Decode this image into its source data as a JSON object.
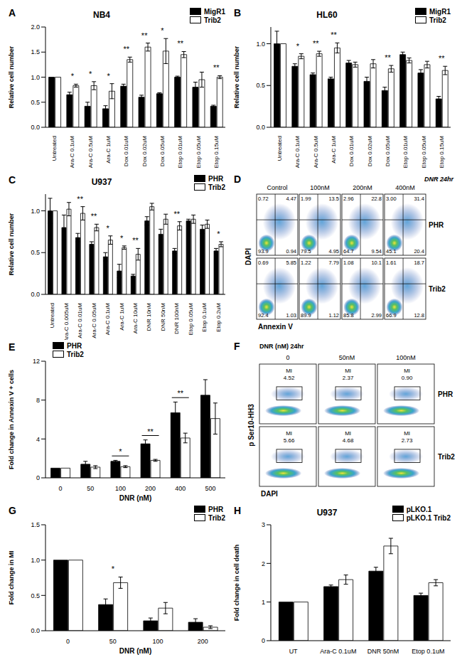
{
  "chart_data": [
    {
      "panel": "A",
      "type": "bar",
      "title": "NB4",
      "y_label": "Relative cell number",
      "legend": "upper right",
      "categories": [
        "Untreated",
        "Ara-C 0.1uM",
        "Ara-C 0.5uM",
        "Ara-C 1uM",
        "Dox 0.01uM",
        "Dox 0.02uM",
        "Dox 0.05uM",
        "Etop 0.01uM",
        "Etop 0.05uM",
        "Etop 0.15uM"
      ],
      "series": [
        {
          "name": "MigR1",
          "color": "#000000",
          "values": [
            1,
            0.65,
            0.42,
            0.37,
            0.82,
            0.6,
            0.67,
            1.0,
            0.8,
            0.42
          ],
          "errors": [
            0,
            0.05,
            0.08,
            0.06,
            0.04,
            0.04,
            0.02,
            0.02,
            0.1,
            0.02
          ]
        },
        {
          "name": "Trib2",
          "color": "#ffffff",
          "values": [
            1,
            0.83,
            0.83,
            0.72,
            1.35,
            1.6,
            1.52,
            1.45,
            0.95,
            1.0
          ],
          "errors": [
            0,
            0.03,
            0.08,
            0.15,
            0.05,
            0.08,
            0.25,
            0.06,
            0.15,
            0.03
          ]
        }
      ],
      "significance": [
        null,
        "*",
        "*",
        "*",
        "**",
        "**",
        "*",
        "**",
        null,
        "**"
      ],
      "ylim": [
        0,
        2
      ],
      "yticks": [
        {
          "value": 0,
          "label": "0.0"
        },
        {
          "value": 0.5,
          "label": "0.5"
        },
        {
          "value": 1,
          "label": "1.0"
        },
        {
          "value": 1.5,
          "label": "1.5"
        },
        {
          "value": 2,
          "label": "2.0"
        }
      ]
    },
    {
      "panel": "B",
      "type": "bar",
      "title": "HL60",
      "y_label": "Relative cell number",
      "legend": "upper right",
      "categories": [
        "Untreated",
        "Ara-C 0.1uM",
        "Ara-C 0.5uM",
        "Ara-C 1uM",
        "Dox 0.01uM",
        "Dox 0.02uM",
        "Dox 0.05uM",
        "Etop 0.01uM",
        "Etop 0.05uM",
        "Etop 0.15uM"
      ],
      "series": [
        {
          "name": "MigR1",
          "color": "#000000",
          "values": [
            1,
            0.73,
            0.63,
            0.58,
            0.77,
            0.55,
            0.44,
            0.87,
            0.65,
            0.34
          ],
          "errors": [
            0.15,
            0.03,
            0.02,
            0.02,
            0.03,
            0.05,
            0.04,
            0.03,
            0.04,
            0.03
          ]
        },
        {
          "name": "Trib2",
          "color": "#ffffff",
          "values": [
            1,
            0.85,
            0.88,
            0.95,
            0.75,
            0.76,
            0.7,
            0.8,
            0.75,
            0.68
          ],
          "errors": [
            0,
            0.03,
            0.03,
            0.06,
            0.03,
            0.05,
            0.04,
            0.03,
            0.04,
            0.05
          ]
        }
      ],
      "significance": [
        null,
        "*",
        "**",
        "**",
        null,
        null,
        "**",
        null,
        null,
        "**"
      ],
      "ylim": [
        0,
        1.2
      ],
      "yticks": [
        {
          "value": 0,
          "label": "0.0"
        },
        {
          "value": 0.5,
          "label": "0.5"
        },
        {
          "value": 1,
          "label": "1.0"
        }
      ]
    },
    {
      "panel": "C",
      "type": "bar",
      "title": "U937",
      "y_label": "Relative cell number",
      "legend": "upper right",
      "categories": [
        "Untreated",
        "Ara-C 0.005uM",
        "Ara-C 0.01uM",
        "Ara-C 0.05uM",
        "Ara-C 0.1uM",
        "Ara-C 1uM",
        "Ara-C 10uM",
        "DNR 10nM",
        "DNR 50nM",
        "DNR 100nM",
        "Etop 0.05uM",
        "Etop 0.1uM",
        "Etop 0.2uM"
      ],
      "series": [
        {
          "name": "PHR",
          "color": "#000000",
          "values": [
            1,
            0.8,
            0.68,
            0.6,
            0.45,
            0.28,
            0.22,
            0.88,
            0.72,
            0.52,
            0.88,
            0.78,
            0.52
          ],
          "errors": [
            0.15,
            0.15,
            0.05,
            0.03,
            0.05,
            0.08,
            0.02,
            0.05,
            0.06,
            0.03,
            0.02,
            0.05,
            0.03
          ]
        },
        {
          "name": "Trib2",
          "color": "#ffffff",
          "values": [
            1,
            1.02,
            0.97,
            0.8,
            0.65,
            0.56,
            0.48,
            1.05,
            0.9,
            0.82,
            0.9,
            0.84,
            0.6
          ],
          "errors": [
            0,
            0.08,
            0.08,
            0.04,
            0.05,
            0.02,
            0.07,
            0.04,
            0.06,
            0.05,
            0.05,
            0.05,
            0.03
          ]
        }
      ],
      "significance": [
        null,
        null,
        "**",
        "**",
        "*",
        "*",
        "**",
        null,
        null,
        "**",
        null,
        null,
        "*"
      ],
      "ylim": [
        0,
        1.2
      ],
      "yticks": [
        {
          "value": 0,
          "label": "0.0"
        },
        {
          "value": 0.5,
          "label": "0.5"
        },
        {
          "value": 1,
          "label": "1.0"
        }
      ]
    },
    {
      "panel": "E",
      "type": "bar",
      "x_label": "DNR (nM)",
      "y_label": "Fold change in Annexin V + cells",
      "legend": "upper left",
      "categories": [
        0,
        50,
        100,
        200,
        400,
        500
      ],
      "series": [
        {
          "name": "PHR",
          "color": "#000000",
          "values": [
            1,
            1.4,
            1.7,
            3.5,
            6.7,
            8.5
          ],
          "errors": [
            0,
            0.3,
            0.1,
            0.4,
            1.1,
            1.6
          ]
        },
        {
          "name": "Trib2",
          "color": "#ffffff",
          "values": [
            1,
            1.1,
            1.15,
            1.8,
            4.1,
            6.1
          ],
          "errors": [
            0,
            0.15,
            0.1,
            0.1,
            0.5,
            1.6
          ]
        }
      ],
      "significance": [
        null,
        null,
        "*",
        "**",
        "**",
        null
      ],
      "ylim": [
        0,
        12
      ],
      "yticks": [
        0,
        4,
        8,
        12
      ]
    },
    {
      "panel": "G",
      "type": "bar",
      "x_label": "DNR (nM)",
      "y_label": "Fold change in MI",
      "legend": "upper right",
      "categories": [
        0,
        50,
        100,
        200
      ],
      "series": [
        {
          "name": "PHR",
          "color": "#000000",
          "values": [
            1,
            0.37,
            0.14,
            0.12
          ],
          "errors": [
            0,
            0.08,
            0.04,
            0.05
          ]
        },
        {
          "name": "Trib2",
          "color": "#ffffff",
          "values": [
            1,
            0.68,
            0.32,
            0.05
          ],
          "errors": [
            0,
            0.08,
            0.08,
            0.02
          ]
        }
      ],
      "significance": [
        null,
        "*",
        null,
        null
      ],
      "ylim": [
        0,
        1.5
      ],
      "yticks": [
        {
          "value": 0,
          "label": "0.0"
        },
        {
          "value": 0.5,
          "label": "0.5"
        },
        {
          "value": 1,
          "label": "1.0"
        },
        {
          "value": 1.5,
          "label": "1.5"
        }
      ]
    },
    {
      "panel": "H",
      "type": "bar",
      "title": "U937",
      "y_label": "Fold change in cell death",
      "legend": "upper right",
      "categories": [
        "UT",
        "Ara-C 0.1uM",
        "DNR 50nM",
        "Etop 0.1uM"
      ],
      "series": [
        {
          "name": "pLKO.1",
          "color": "#000000",
          "values": [
            1,
            1.4,
            1.8,
            1.17
          ],
          "errors": [
            0,
            0.04,
            0.1,
            0.06
          ]
        },
        {
          "name": "pLKO.1 Trib2",
          "color": "#ffffff",
          "values": [
            1,
            1.58,
            2.45,
            1.5
          ],
          "errors": [
            0,
            0.12,
            0.2,
            0.08
          ]
        }
      ],
      "significance": [
        null,
        null,
        null,
        null
      ],
      "ylim": [
        0,
        3
      ],
      "yticks": [
        0,
        1,
        2,
        3
      ]
    }
  ],
  "flow_panels": [
    {
      "panel": "D",
      "header": "DNR 24hr",
      "columns": [
        "Control",
        "100nM",
        "200nM",
        "400nM"
      ],
      "y_label": "DAPI",
      "x_label": "Annexin V",
      "rows": [
        {
          "name": "PHR",
          "quadrants": [
            [
              "0.72",
              "4.47",
              "93.9",
              "0.94"
            ],
            [
              "1.99",
              "13.5",
              "79.5",
              "4.95"
            ],
            [
              "2.96",
              "22.8",
              "64.7",
              "9.54"
            ],
            [
              "3.00",
              "31.4",
              "45.1",
              "20.4"
            ]
          ]
        },
        {
          "name": "Trib2",
          "quadrants": [
            [
              "0.69",
              "5.85",
              "92.4",
              "1.03"
            ],
            [
              "1.22",
              "7.79",
              "89.9",
              "1.12"
            ],
            [
              "1.08",
              "10.1",
              "85.8",
              "2.99"
            ],
            [
              "1.61",
              "18.7",
              "66.9",
              "12.8"
            ]
          ]
        }
      ]
    },
    {
      "panel": "F",
      "header": "DNR (nM) 24hr",
      "columns": [
        "0",
        "50nM",
        "100nM"
      ],
      "gate_label": "MI",
      "y_label": "p Ser10-HH3",
      "x_label": "DAPI",
      "rows": [
        {
          "name": "PHR",
          "values": [
            "4.52",
            "2.37",
            "0.90"
          ]
        },
        {
          "name": "Trib2",
          "values": [
            "5.66",
            "4.68",
            "2.73"
          ]
        }
      ]
    }
  ]
}
